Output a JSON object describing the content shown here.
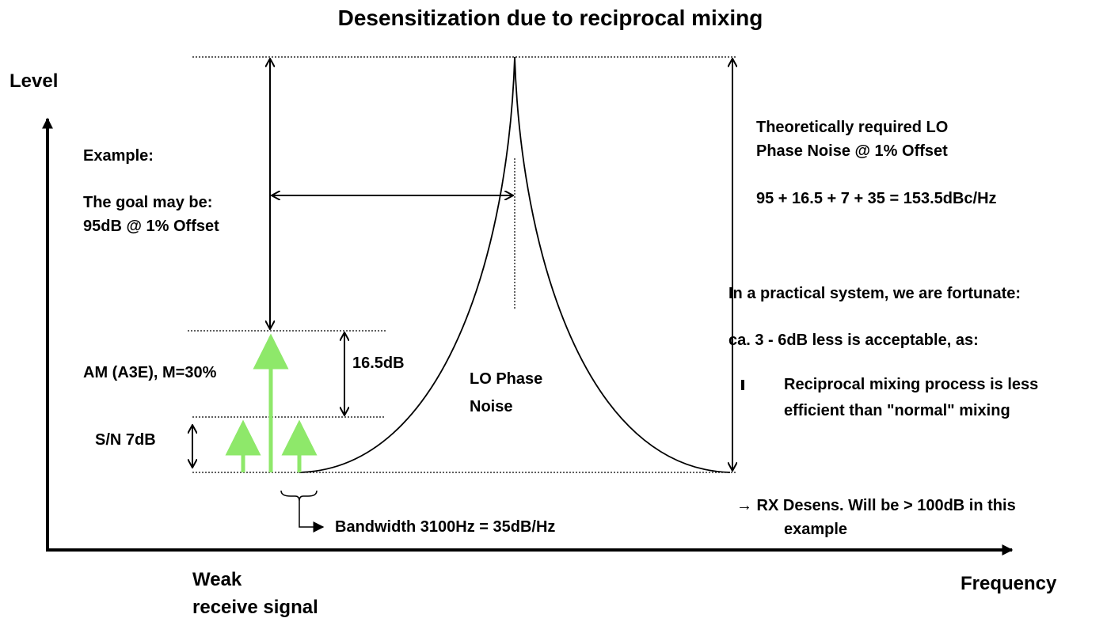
{
  "title": "Desensitization due to reciprocal mixing",
  "y_axis_label": "Level",
  "x_axis_label": "Frequency",
  "signal_label": [
    "Weak",
    "receive signal"
  ],
  "example_heading": "Example:",
  "goal": [
    "The goal may be:",
    "95dB @ 1% Offset"
  ],
  "modulation": "AM (A3E), M=30%",
  "snr": "S/N 7dB",
  "sideband_level": "16.5dB",
  "noise_label": [
    "LO Phase",
    "Noise"
  ],
  "bandwidth": "Bandwidth 3100Hz = 35dB/Hz",
  "requirement": [
    "Theoretically required LO",
    "Phase Noise @ 1% Offset"
  ],
  "formula": "95 + 16.5 + 7 + 35 = 153.5dBc/Hz",
  "practical": "In a practical system, we are fortunate:",
  "acceptable": "ca. 3 - 6dB less is acceptable, as:",
  "reason": [
    "Reciprocal mixing process is less",
    "efficient than \"normal\" mixing"
  ],
  "conclusion": [
    "→ RX Desens. Will be > 100dB in this",
    "example"
  ]
}
